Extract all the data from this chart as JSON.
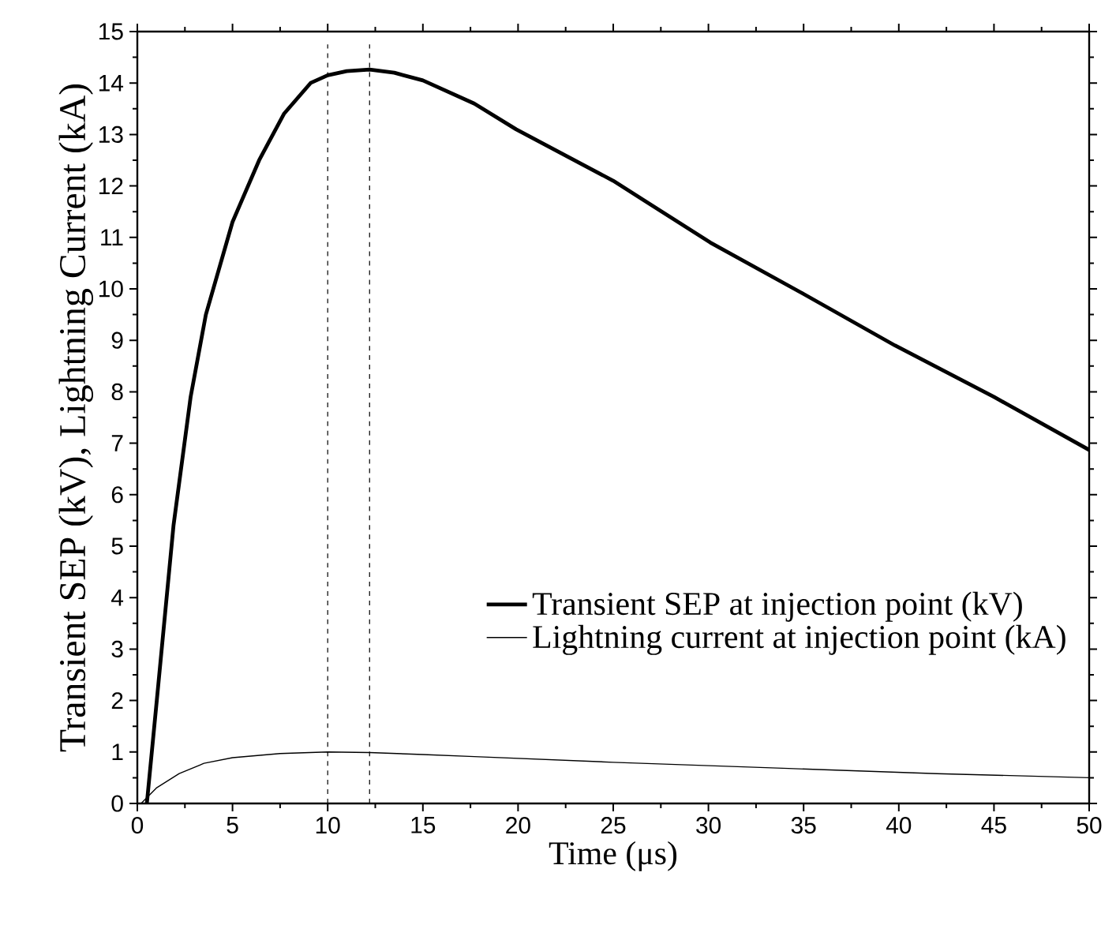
{
  "chart_data": {
    "type": "line",
    "xlabel": "Time (μs)",
    "ylabel": "Transient SEP (kV), Lightning Current (kA)",
    "xlim": [
      0,
      50
    ],
    "ylim": [
      0,
      15
    ],
    "xticks": [
      0,
      5,
      10,
      15,
      20,
      25,
      30,
      35,
      40,
      45,
      50
    ],
    "yticks": [
      0,
      1,
      2,
      3,
      4,
      5,
      6,
      7,
      8,
      9,
      10,
      11,
      12,
      13,
      14,
      15
    ],
    "legend": "bottom right",
    "grid": false,
    "marker": "none",
    "series": [
      {
        "name": "Transient SEP at injection point (kV)",
        "color": "#000000",
        "line_style": "solid",
        "x": [
          0.5,
          1.1,
          1.9,
          2.8,
          3.6,
          5,
          6.4,
          7.7,
          9.1,
          10,
          11,
          12.2,
          13.5,
          15,
          17.7,
          19.9,
          25,
          30.1,
          35,
          39.8,
          45,
          50
        ],
        "values": [
          0,
          2.3,
          5.4,
          7.9,
          9.5,
          11.3,
          12.5,
          13.4,
          14,
          14.15,
          14.23,
          14.26,
          14.2,
          14.05,
          13.6,
          13.1,
          12.1,
          10.9,
          9.9,
          8.9,
          7.9,
          6.87
        ]
      },
      {
        "name": "Lightning current at injection point (kA)",
        "color": "#000000",
        "line_style": "solid",
        "x": [
          0.2,
          1,
          2.2,
          3.5,
          5,
          7.5,
          10,
          12.2,
          15,
          17.7,
          25,
          34.2,
          42,
          50
        ],
        "values": [
          0,
          0.3,
          0.58,
          0.78,
          0.89,
          0.97,
          1.0,
          0.99,
          0.95,
          0.91,
          0.8,
          0.68,
          0.58,
          0.5
        ]
      }
    ],
    "ref_lines": [
      {
        "axis": "x",
        "value": 10,
        "color": "#000000",
        "line_style": "dashed"
      },
      {
        "axis": "x",
        "value": 12.2,
        "color": "#000000",
        "line_style": "dashed"
      }
    ]
  }
}
